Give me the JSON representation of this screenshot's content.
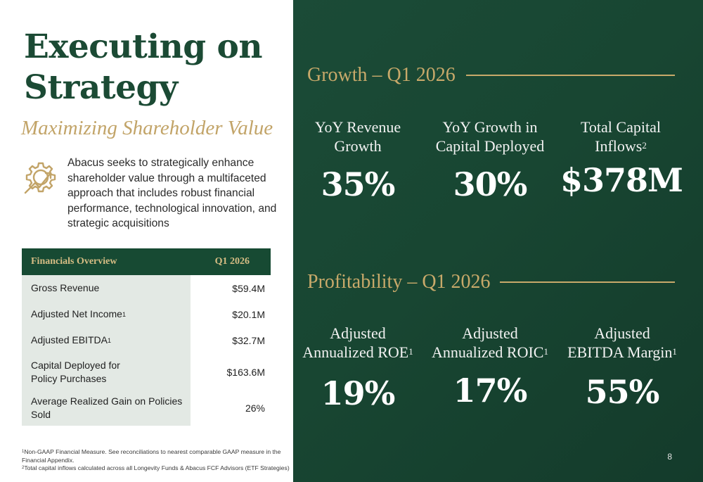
{
  "title": "Executing on Strategy",
  "subtitle": "Maximizing Shareholder Value",
  "intro": "Abacus seeks to strategically enhance shareholder value through a multifaceted approach that includes robust financial performance, technological innovation, and strategic acquisitions",
  "icon": "strategy-gear-chart-icon",
  "financials": {
    "header_label": "Financials Overview",
    "header_period": "Q1 2026",
    "rows": [
      {
        "label": "Gross Revenue",
        "sup": "",
        "value": "$59.4M"
      },
      {
        "label": "Adjusted Net Income",
        "sup": "1",
        "value": "$20.1M"
      },
      {
        "label": "Adjusted EBITDA",
        "sup": "1",
        "value": "$32.7M"
      },
      {
        "label": "Capital Deployed for Policy Purchases",
        "sup": "",
        "value": "$163.6M"
      },
      {
        "label": "Average Realized Gain on Policies Sold",
        "sup": "",
        "value": "26%"
      }
    ]
  },
  "footnotes": [
    {
      "num": "1",
      "text": "Non-GAAP Financial Measure. See reconciliations to nearest comparable GAAP measure in the Financial Appendix."
    },
    {
      "num": "2",
      "text": "Total capital inflows calculated across all Longevity Funds & Abacus FCF Advisors (ETF Strategies)"
    }
  ],
  "growth": {
    "title": "Growth – Q1 2026",
    "metrics": [
      {
        "line1": "YoY Revenue",
        "line2": "Growth",
        "sup": "",
        "value": "35%"
      },
      {
        "line1": "YoY Growth in",
        "line2": "Capital Deployed",
        "sup": "",
        "value": "30%"
      },
      {
        "line1": "Total Capital",
        "line2": "Inflows",
        "sup": "2",
        "value": "$378M"
      }
    ]
  },
  "profitability": {
    "title": "Profitability – Q1 2026",
    "metrics": [
      {
        "line1": "Adjusted",
        "line2": "Annualized ROE",
        "sup": "1",
        "value": "19%"
      },
      {
        "line1": "Adjusted",
        "line2": "Annualized ROIC",
        "sup": "1",
        "value": "17%"
      },
      {
        "line1": "Adjusted",
        "line2": "EBITDA Margin",
        "sup": "1",
        "value": "55%"
      }
    ]
  },
  "page_number": "8",
  "colors": {
    "dark_green": "#174a33",
    "gold": "#c8a96a",
    "light_row": "#e3e9e4"
  }
}
